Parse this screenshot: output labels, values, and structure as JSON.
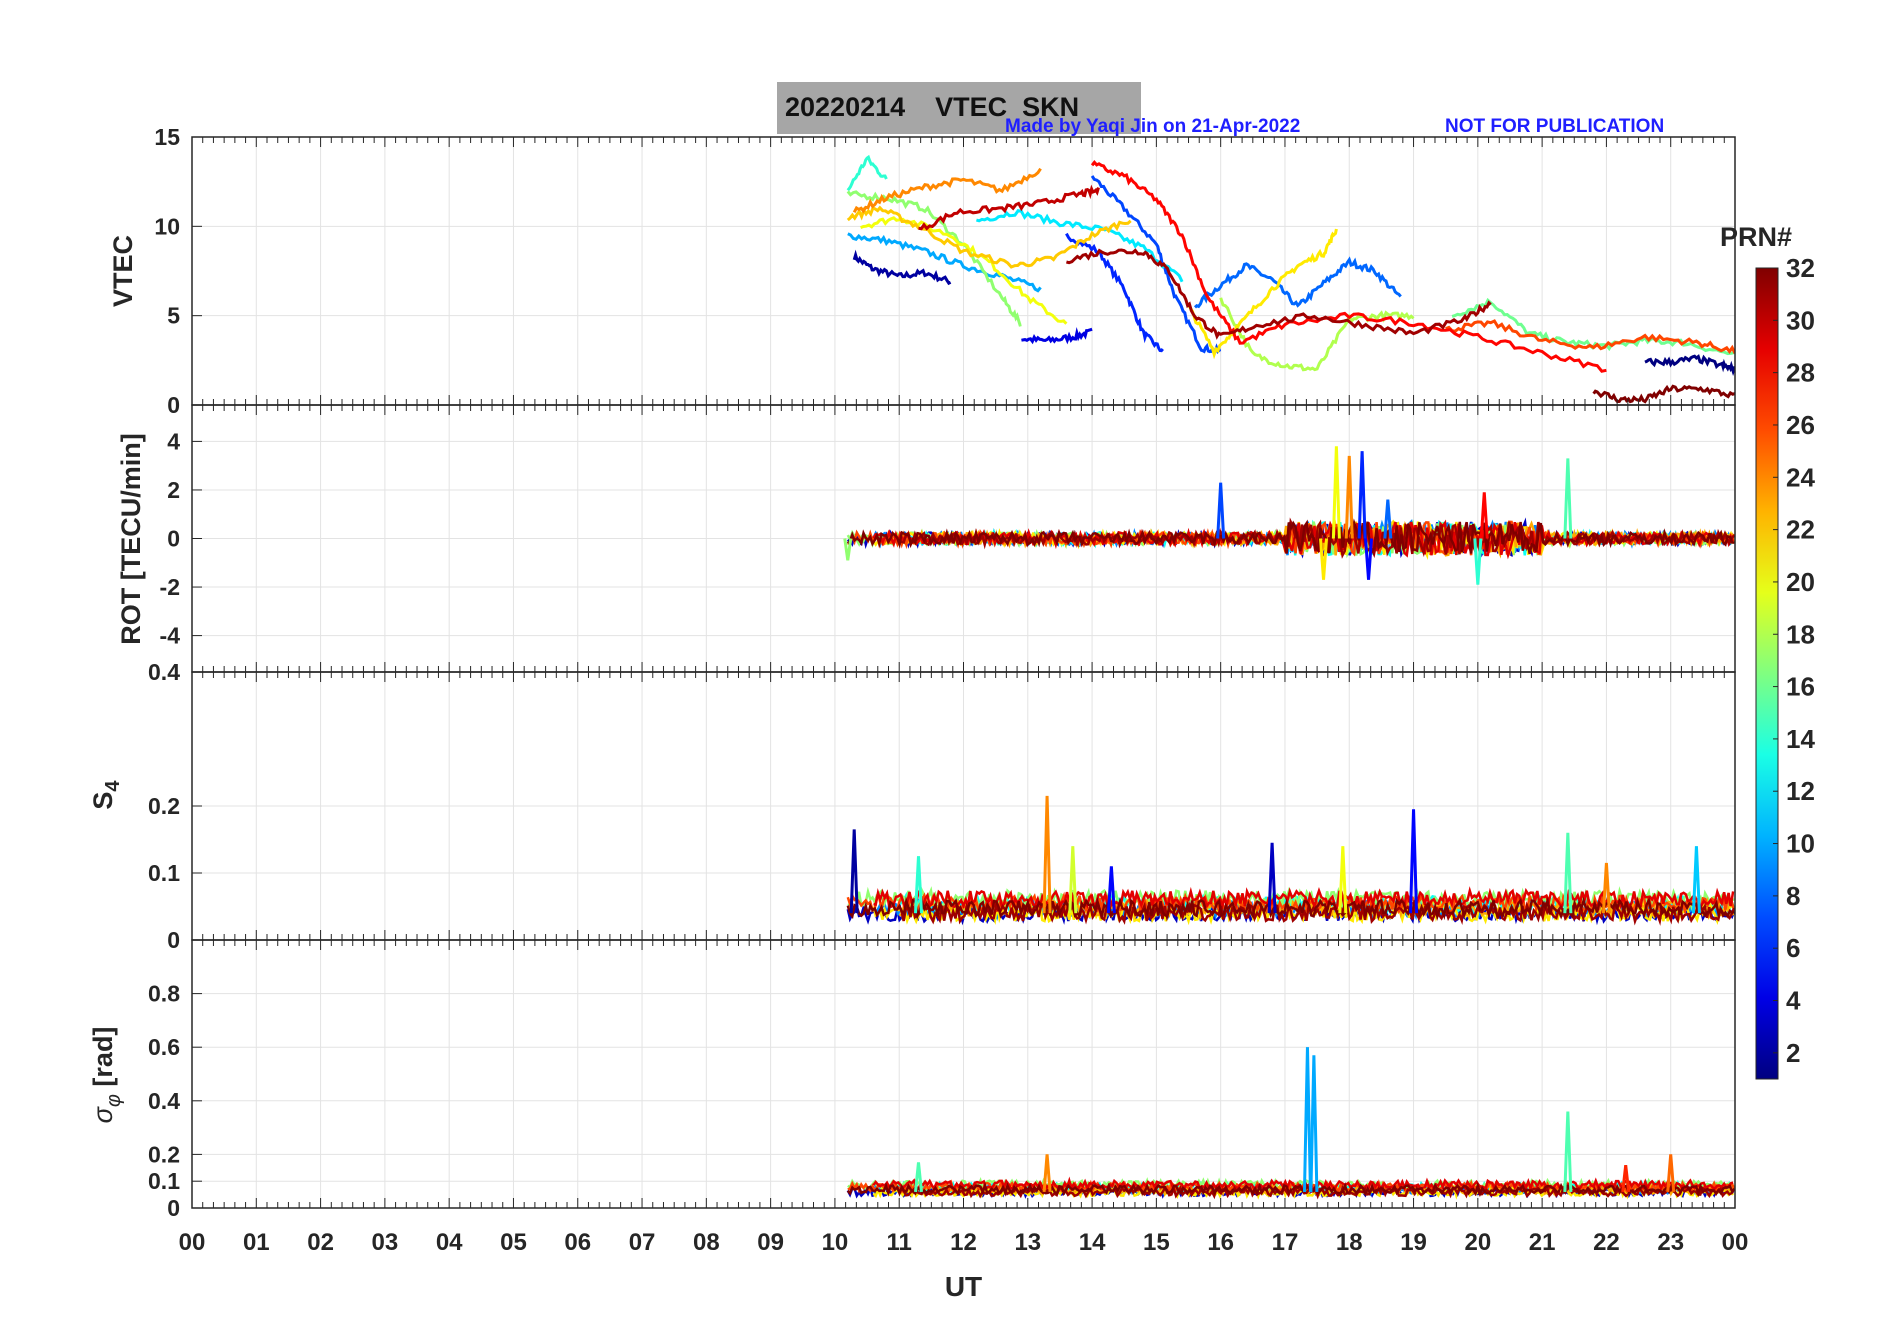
{
  "figure": {
    "title_date": "20220214",
    "title_label": "VTEC  SKN",
    "credit": "Made by Yaqi Jin on 21-Apr-2022",
    "notice": "NOT FOR PUBLICATION"
  },
  "chart_data": [
    {
      "type": "line",
      "panel": "vtec",
      "ylabel": "VTEC",
      "ylim": [
        0,
        15
      ],
      "yticks": [
        "15",
        "10",
        "5",
        "0"
      ],
      "xlim": [
        0,
        24
      ],
      "grid": true,
      "series_note": "multiple PRN traces 10-24 UT",
      "series": [
        {
          "prn": 2,
          "x": [
            10.3,
            10.6,
            11.0,
            11.4,
            11.8
          ],
          "y": [
            8.3,
            7.6,
            7.2,
            7.4,
            6.9
          ]
        },
        {
          "prn": 4,
          "x": [
            12.9,
            13.3,
            13.7,
            14.0
          ],
          "y": [
            3.7,
            3.6,
            3.8,
            4.1
          ]
        },
        {
          "prn": 6,
          "x": [
            13.6,
            14.1,
            14.5,
            14.8,
            15.1
          ],
          "y": [
            9.5,
            8.6,
            6.5,
            4.0,
            3.0
          ]
        },
        {
          "prn": 7,
          "x": [
            14.0,
            14.5,
            15.0,
            15.3,
            15.7,
            16.0
          ],
          "y": [
            12.8,
            11.0,
            9.0,
            6.0,
            3.2,
            3.0
          ]
        },
        {
          "prn": 8,
          "x": [
            15.6,
            16.0,
            16.4,
            16.8,
            17.2,
            17.6,
            18.0,
            18.4,
            18.8
          ],
          "y": [
            5.5,
            6.7,
            7.8,
            7.0,
            5.5,
            6.8,
            8.0,
            7.5,
            6.0
          ]
        },
        {
          "prn": 10,
          "x": [
            10.2,
            10.8,
            11.4,
            12.0,
            12.6,
            13.2
          ],
          "y": [
            9.5,
            9.2,
            8.6,
            7.8,
            7.2,
            6.5
          ]
        },
        {
          "prn": 12,
          "x": [
            12.2,
            12.8,
            13.5,
            14.2,
            14.8,
            15.4
          ],
          "y": [
            10.3,
            10.8,
            10.2,
            9.8,
            8.8,
            7.0
          ]
        },
        {
          "prn": 14,
          "x": [
            10.2,
            10.5,
            10.8
          ],
          "y": [
            12.0,
            13.8,
            12.6
          ]
        },
        {
          "prn": 16,
          "x": [
            19.6,
            20.2,
            20.8,
            21.4,
            22.0,
            22.6,
            23.2,
            24.0
          ],
          "y": [
            5.0,
            5.8,
            4.0,
            3.5,
            3.3,
            3.6,
            3.5,
            2.8
          ]
        },
        {
          "prn": 17,
          "x": [
            10.2,
            10.8,
            11.4,
            12.0,
            12.6,
            12.9
          ],
          "y": [
            11.8,
            11.6,
            11.0,
            9.0,
            6.0,
            4.5
          ]
        },
        {
          "prn": 18,
          "x": [
            16.0,
            16.5,
            17.0,
            17.5,
            18.0,
            18.5,
            19.0
          ],
          "y": [
            6.0,
            2.8,
            2.2,
            2.0,
            4.8,
            5.0,
            5.0
          ]
        },
        {
          "prn": 20,
          "x": [
            10.4,
            11.0,
            11.8,
            12.4,
            13.0,
            13.6
          ],
          "y": [
            10.0,
            10.5,
            9.5,
            8.0,
            6.0,
            4.5
          ]
        },
        {
          "prn": 21,
          "x": [
            15.5,
            15.9,
            16.3,
            16.8,
            17.2,
            17.6,
            17.8
          ],
          "y": [
            5.5,
            3.0,
            4.5,
            6.5,
            7.8,
            8.5,
            9.8
          ]
        },
        {
          "prn": 22,
          "x": [
            10.2,
            10.7,
            11.3,
            12.0,
            12.8,
            13.4,
            14.0,
            14.6
          ],
          "y": [
            10.5,
            11.0,
            10.0,
            8.6,
            7.8,
            8.2,
            9.5,
            10.4
          ]
        },
        {
          "prn": 24,
          "x": [
            10.3,
            10.8,
            11.4,
            12.0,
            12.6,
            13.2
          ],
          "y": [
            10.8,
            11.6,
            12.2,
            12.6,
            12.0,
            13.2
          ]
        },
        {
          "prn": 26,
          "x": [
            19.5,
            20.2,
            21.0,
            21.8,
            22.6,
            23.4,
            24.0
          ],
          "y": [
            4.2,
            4.6,
            3.6,
            3.2,
            3.8,
            3.5,
            3.0
          ]
        },
        {
          "prn": 28,
          "x": [
            14.0,
            14.5,
            15.0,
            15.4,
            15.8,
            16.3,
            17.0,
            18.0,
            19.0,
            20.0,
            21.0,
            22.0
          ],
          "y": [
            13.5,
            12.8,
            11.5,
            9.5,
            6.0,
            3.5,
            4.5,
            5.0,
            4.6,
            3.8,
            2.9,
            2.0
          ]
        },
        {
          "prn": 30,
          "x": [
            11.3,
            11.9,
            12.6,
            13.2,
            13.8,
            14.1
          ],
          "y": [
            9.8,
            10.8,
            11.0,
            11.3,
            11.8,
            12.0
          ]
        },
        {
          "prn": 31,
          "x": [
            13.6,
            14.2,
            14.8,
            15.2,
            15.6,
            16.0,
            16.6,
            17.4,
            18.2,
            19.0,
            19.8,
            20.2
          ],
          "y": [
            8.1,
            8.6,
            8.6,
            7.5,
            5.0,
            3.8,
            4.5,
            5.0,
            4.5,
            4.0,
            4.8,
            5.7
          ]
        },
        {
          "prn": 32,
          "x": [
            21.8,
            22.2,
            22.6,
            23.0,
            23.5,
            24.0
          ],
          "y": [
            0.8,
            0.3,
            0.3,
            0.9,
            0.9,
            0.5
          ]
        },
        {
          "prn": 1,
          "x": [
            22.6,
            23.0,
            23.4,
            23.8,
            24.0
          ],
          "y": [
            2.4,
            2.4,
            2.6,
            2.2,
            2.0
          ]
        }
      ]
    },
    {
      "type": "line",
      "panel": "rot",
      "ylabel": "ROT [TECU/min]",
      "ylim": [
        -5.5,
        5.5
      ],
      "yticks": [
        "4",
        "2",
        "0",
        "-2",
        "-4"
      ],
      "xlim": [
        0,
        24
      ],
      "grid": true,
      "spikes": [
        {
          "x": 16.0,
          "y": 2.3,
          "prn": 7
        },
        {
          "x": 17.8,
          "y": 3.8,
          "prn": 20
        },
        {
          "x": 18.0,
          "y": 3.4,
          "prn": 24
        },
        {
          "x": 18.2,
          "y": 3.6,
          "prn": 6
        },
        {
          "x": 18.6,
          "y": 1.6,
          "prn": 8
        },
        {
          "x": 20.1,
          "y": 1.9,
          "prn": 28
        },
        {
          "x": 20.0,
          "y": -1.9,
          "prn": 14
        },
        {
          "x": 21.4,
          "y": 3.3,
          "prn": 15
        },
        {
          "x": 17.6,
          "y": -1.7,
          "prn": 21
        },
        {
          "x": 18.3,
          "y": -1.7,
          "prn": 5
        },
        {
          "x": 10.2,
          "y": -0.9,
          "prn": 17
        }
      ]
    },
    {
      "type": "line",
      "panel": "s4",
      "ylabel": "S4",
      "ylim": [
        0,
        0.4
      ],
      "yticks": [
        "0.4",
        "0.2",
        "0.1",
        "0"
      ],
      "xlim": [
        0,
        24
      ],
      "grid": true,
      "baseline": 0.04,
      "spikes": [
        {
          "x": 10.3,
          "y": 0.165,
          "prn": 2
        },
        {
          "x": 11.3,
          "y": 0.125,
          "prn": 14
        },
        {
          "x": 13.3,
          "y": 0.215,
          "prn": 24
        },
        {
          "x": 13.7,
          "y": 0.14,
          "prn": 19
        },
        {
          "x": 14.3,
          "y": 0.11,
          "prn": 5
        },
        {
          "x": 16.8,
          "y": 0.145,
          "prn": 3
        },
        {
          "x": 17.9,
          "y": 0.14,
          "prn": 20
        },
        {
          "x": 19.0,
          "y": 0.195,
          "prn": 5
        },
        {
          "x": 21.4,
          "y": 0.16,
          "prn": 15
        },
        {
          "x": 23.4,
          "y": 0.14,
          "prn": 11
        },
        {
          "x": 22.0,
          "y": 0.115,
          "prn": 24
        }
      ]
    },
    {
      "type": "line",
      "panel": "sigma_phi",
      "ylabel": "σ_φ [rad]",
      "ylim": [
        0,
        1.0
      ],
      "yticks": [
        "0.8",
        "0.6",
        "0.4",
        "0.2",
        "0.1",
        "0"
      ],
      "xlim": [
        0,
        24
      ],
      "grid": true,
      "baseline": 0.06,
      "spikes": [
        {
          "x": 17.35,
          "y": 0.6,
          "prn": 10
        },
        {
          "x": 17.45,
          "y": 0.57,
          "prn": 10
        },
        {
          "x": 21.4,
          "y": 0.36,
          "prn": 15
        },
        {
          "x": 13.3,
          "y": 0.2,
          "prn": 24
        },
        {
          "x": 23.0,
          "y": 0.2,
          "prn": 25
        },
        {
          "x": 22.3,
          "y": 0.16,
          "prn": 27
        },
        {
          "x": 11.3,
          "y": 0.17,
          "prn": 15
        }
      ]
    }
  ],
  "xaxis": {
    "label": "UT",
    "ticks": [
      "00",
      "01",
      "02",
      "03",
      "04",
      "05",
      "06",
      "07",
      "08",
      "09",
      "10",
      "11",
      "12",
      "13",
      "14",
      "15",
      "16",
      "17",
      "18",
      "19",
      "20",
      "21",
      "22",
      "23",
      "00"
    ]
  },
  "colorbar": {
    "label": "PRN#",
    "range": [
      1,
      32
    ],
    "colormap": "jet",
    "ticks": [
      "32",
      "30",
      "28",
      "26",
      "24",
      "22",
      "20",
      "18",
      "16",
      "14",
      "12",
      "10",
      "8",
      "6",
      "4",
      "2"
    ]
  }
}
